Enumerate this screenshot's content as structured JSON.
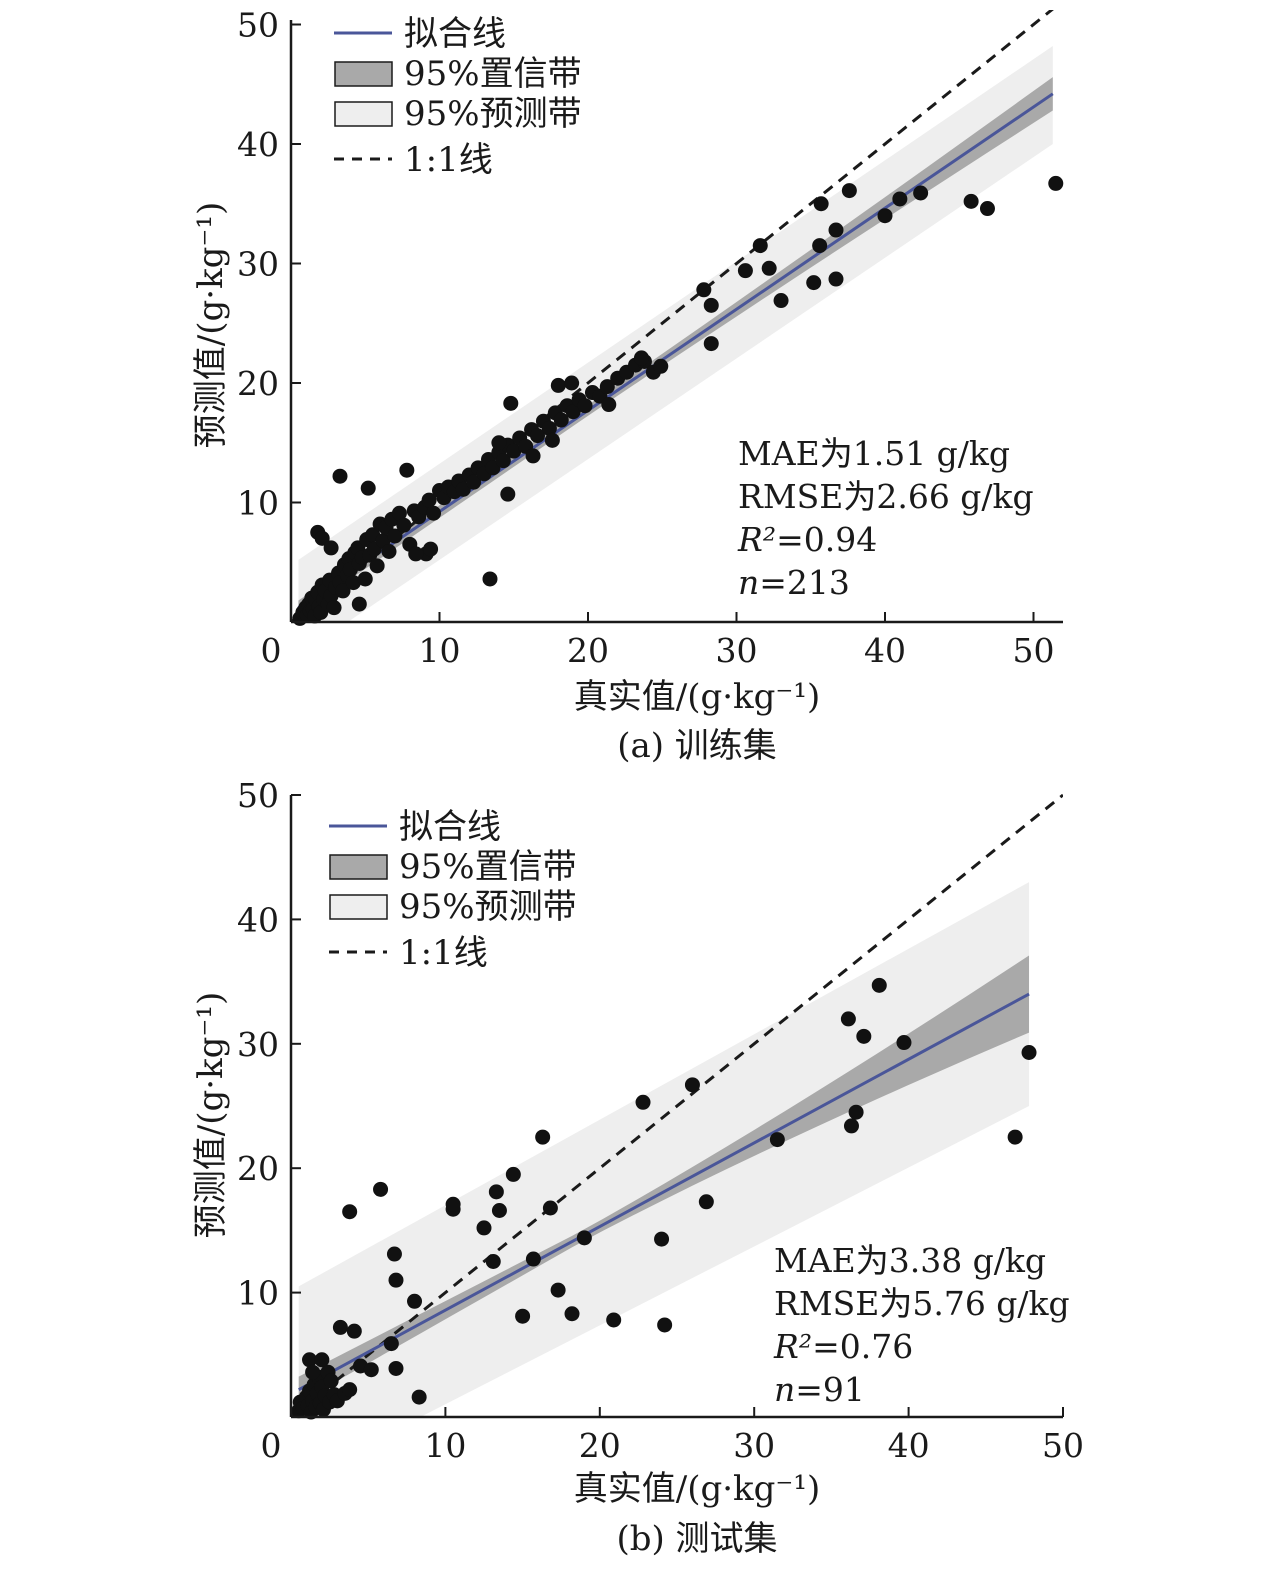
{
  "colors": {
    "fit_line": "#4a5699",
    "confidence_band": "#a9a9a9",
    "prediction_band": "#eeeeee",
    "points": "#111111",
    "axis": "#1a1a1a"
  },
  "legend": {
    "fit": "拟合线",
    "confidence": "95%置信带",
    "prediction": "95%预测带",
    "identity": "1:1线"
  },
  "chart_data": [
    {
      "type": "scatter",
      "caption": "(a) 训练集",
      "xlabel": "真实值/(g·kg⁻¹)",
      "ylabel": "预测值/(g·kg⁻¹)",
      "xlim": [
        0,
        52
      ],
      "ylim": [
        0,
        50
      ],
      "xticks": [
        0,
        10,
        20,
        30,
        40,
        50
      ],
      "yticks": [
        10,
        20,
        30,
        40,
        50
      ],
      "stats": [
        "MAE为1.51 g/kg",
        "RMSE为2.66 g/kg",
        "R²=0.94",
        "n=213"
      ],
      "fit": {
        "x": [
          0.5,
          51.3
        ],
        "y": [
          1.2,
          44.2
        ]
      },
      "confidence_band": {
        "x": [
          0.5,
          51.3
        ],
        "lower": [
          0.6,
          42.8
        ],
        "upper": [
          1.8,
          45.6
        ]
      },
      "prediction_band": {
        "x": [
          0.5,
          51.3
        ],
        "lower": [
          -2.8,
          40.0
        ],
        "upper": [
          5.2,
          48.2
        ]
      },
      "points": [
        [
          0.6,
          0.3
        ],
        [
          0.8,
          0.8
        ],
        [
          1.0,
          1.2
        ],
        [
          1.1,
          0.6
        ],
        [
          1.2,
          1.5
        ],
        [
          1.3,
          0.9
        ],
        [
          1.4,
          2.0
        ],
        [
          1.5,
          1.1
        ],
        [
          1.6,
          0.5
        ],
        [
          1.7,
          1.8
        ],
        [
          1.8,
          2.5
        ],
        [
          1.9,
          1.3
        ],
        [
          2.0,
          0.8
        ],
        [
          2.1,
          3.1
        ],
        [
          2.2,
          1.9
        ],
        [
          2.3,
          2.6
        ],
        [
          2.5,
          1.5
        ],
        [
          2.6,
          3.5
        ],
        [
          2.7,
          2.2
        ],
        [
          2.9,
          1.2
        ],
        [
          3.0,
          2.9
        ],
        [
          3.2,
          4.1
        ],
        [
          3.3,
          3.3
        ],
        [
          3.5,
          2.6
        ],
        [
          3.6,
          4.8
        ],
        [
          3.8,
          3.9
        ],
        [
          3.9,
          5.3
        ],
        [
          4.0,
          4.4
        ],
        [
          4.2,
          3.3
        ],
        [
          4.3,
          5.8
        ],
        [
          4.5,
          6.2
        ],
        [
          4.6,
          4.9
        ],
        [
          4.8,
          5.4
        ],
        [
          5.0,
          3.6
        ],
        [
          5.1,
          6.9
        ],
        [
          5.3,
          5.6
        ],
        [
          5.5,
          7.3
        ],
        [
          5.6,
          6.1
        ],
        [
          5.8,
          4.7
        ],
        [
          6.0,
          8.2
        ],
        [
          6.2,
          6.8
        ],
        [
          6.4,
          7.9
        ],
        [
          6.6,
          5.9
        ],
        [
          6.8,
          8.6
        ],
        [
          7.0,
          7.2
        ],
        [
          7.3,
          9.1
        ],
        [
          7.6,
          8.1
        ],
        [
          8.0,
          6.5
        ],
        [
          8.3,
          9.3
        ],
        [
          8.6,
          8.8
        ],
        [
          9.0,
          9.6
        ],
        [
          9.3,
          10.2
        ],
        [
          9.6,
          9.1
        ],
        [
          10.0,
          11.0
        ],
        [
          10.3,
          10.4
        ],
        [
          10.6,
          11.3
        ],
        [
          11.0,
          10.9
        ],
        [
          11.3,
          11.8
        ],
        [
          11.6,
          11.1
        ],
        [
          12.0,
          12.3
        ],
        [
          12.3,
          11.7
        ],
        [
          12.6,
          12.9
        ],
        [
          13.0,
          12.4
        ],
        [
          13.3,
          13.6
        ],
        [
          13.6,
          12.9
        ],
        [
          14.0,
          14.2
        ],
        [
          14.3,
          13.5
        ],
        [
          14.6,
          14.8
        ],
        [
          15.0,
          14.3
        ],
        [
          15.4,
          15.4
        ],
        [
          15.8,
          14.7
        ],
        [
          16.2,
          16.1
        ],
        [
          16.6,
          15.6
        ],
        [
          17.0,
          16.8
        ],
        [
          17.4,
          16.2
        ],
        [
          17.8,
          17.5
        ],
        [
          18.2,
          16.9
        ],
        [
          18.6,
          18.1
        ],
        [
          19.0,
          17.6
        ],
        [
          19.4,
          18.6
        ],
        [
          19.8,
          18.1
        ],
        [
          20.3,
          19.2
        ],
        [
          20.8,
          18.9
        ],
        [
          21.3,
          19.7
        ],
        [
          22.0,
          20.4
        ],
        [
          22.6,
          20.9
        ],
        [
          23.2,
          21.5
        ],
        [
          23.8,
          21.8
        ],
        [
          24.4,
          20.9
        ],
        [
          24.9,
          21.4
        ],
        [
          1.8,
          7.5
        ],
        [
          2.1,
          7.0
        ],
        [
          3.3,
          12.2
        ],
        [
          7.8,
          12.7
        ],
        [
          5.2,
          11.2
        ],
        [
          2.7,
          6.2
        ],
        [
          4.6,
          1.5
        ],
        [
          13.4,
          3.6
        ],
        [
          14.8,
          18.3
        ],
        [
          9.1,
          5.7
        ],
        [
          9.4,
          6.1
        ],
        [
          8.4,
          5.7
        ],
        [
          14.6,
          10.7
        ],
        [
          14.0,
          15.0
        ],
        [
          16.3,
          13.9
        ],
        [
          18.0,
          19.8
        ],
        [
          17.6,
          15.2
        ],
        [
          18.9,
          20.0
        ],
        [
          21.4,
          18.2
        ],
        [
          23.6,
          22.1
        ],
        [
          27.8,
          27.8
        ],
        [
          28.3,
          26.5
        ],
        [
          28.3,
          23.3
        ],
        [
          30.6,
          29.4
        ],
        [
          31.6,
          31.5
        ],
        [
          32.2,
          29.6
        ],
        [
          33.0,
          26.9
        ],
        [
          35.2,
          28.4
        ],
        [
          35.6,
          31.5
        ],
        [
          35.7,
          35.0
        ],
        [
          36.7,
          28.7
        ],
        [
          36.7,
          32.8
        ],
        [
          37.6,
          36.1
        ],
        [
          40.0,
          34.0
        ],
        [
          41.0,
          35.4
        ],
        [
          42.4,
          35.9
        ],
        [
          45.8,
          35.2
        ],
        [
          46.9,
          34.6
        ],
        [
          51.5,
          36.7
        ]
      ]
    },
    {
      "type": "scatter",
      "caption": "(b) 测试集",
      "xlabel": "真实值/(g·kg⁻¹)",
      "ylabel": "预测值/(g·kg⁻¹)",
      "xlim": [
        0,
        50
      ],
      "ylim": [
        0,
        50
      ],
      "xticks": [
        0,
        10,
        20,
        30,
        40,
        50
      ],
      "yticks": [
        10,
        20,
        30,
        40,
        50
      ],
      "stats": [
        "MAE为3.38 g/kg",
        "RMSE为5.76 g/kg",
        "R²=0.76",
        "n=91"
      ],
      "fit": {
        "x": [
          0.5,
          47.8
        ],
        "y": [
          2.2,
          34.0
        ]
      },
      "confidence_band": {
        "x": [
          0.5,
          47.8
        ],
        "lower": [
          1.2,
          30.8
        ],
        "upper": [
          3.3,
          37.0
        ]
      },
      "prediction_band": {
        "x": [
          0.5,
          47.8
        ],
        "lower": [
          -5.0,
          25.0
        ],
        "upper": [
          10.5,
          43.0
        ]
      },
      "points": [
        [
          0.5,
          0.5
        ],
        [
          0.6,
          1.2
        ],
        [
          0.8,
          0.7
        ],
        [
          1.0,
          1.6
        ],
        [
          1.1,
          0.9
        ],
        [
          1.2,
          2.1
        ],
        [
          1.3,
          0.4
        ],
        [
          1.4,
          1.3
        ],
        [
          1.5,
          2.6
        ],
        [
          1.6,
          0.8
        ],
        [
          1.7,
          1.9
        ],
        [
          1.8,
          3.2
        ],
        [
          1.9,
          1.1
        ],
        [
          2.0,
          2.4
        ],
        [
          2.1,
          0.6
        ],
        [
          2.2,
          1.7
        ],
        [
          2.4,
          3.6
        ],
        [
          2.5,
          1.2
        ],
        [
          2.6,
          2.9
        ],
        [
          2.8,
          1.8
        ],
        [
          1.2,
          4.6
        ],
        [
          1.4,
          3.6
        ],
        [
          2.0,
          4.6
        ],
        [
          3.0,
          1.3
        ],
        [
          3.2,
          7.2
        ],
        [
          3.5,
          1.9
        ],
        [
          3.8,
          2.2
        ],
        [
          3.8,
          16.5
        ],
        [
          4.1,
          6.9
        ],
        [
          4.5,
          4.1
        ],
        [
          5.2,
          3.8
        ],
        [
          5.8,
          18.3
        ],
        [
          6.5,
          5.9
        ],
        [
          6.7,
          13.1
        ],
        [
          6.8,
          3.9
        ],
        [
          6.8,
          11.0
        ],
        [
          8.0,
          9.3
        ],
        [
          8.3,
          1.6
        ],
        [
          10.5,
          16.7
        ],
        [
          10.5,
          17.1
        ],
        [
          12.5,
          15.2
        ],
        [
          13.1,
          12.5
        ],
        [
          13.3,
          18.1
        ],
        [
          13.5,
          16.6
        ],
        [
          14.4,
          19.5
        ],
        [
          15.0,
          8.1
        ],
        [
          15.7,
          12.7
        ],
        [
          16.3,
          22.5
        ],
        [
          16.8,
          16.8
        ],
        [
          17.3,
          10.2
        ],
        [
          18.2,
          8.3
        ],
        [
          19.0,
          14.4
        ],
        [
          20.9,
          7.8
        ],
        [
          22.8,
          25.3
        ],
        [
          24.0,
          14.3
        ],
        [
          24.2,
          7.4
        ],
        [
          26.0,
          26.7
        ],
        [
          26.9,
          17.3
        ],
        [
          31.5,
          22.3
        ],
        [
          36.1,
          32.0
        ],
        [
          36.3,
          23.4
        ],
        [
          36.6,
          24.5
        ],
        [
          37.1,
          30.6
        ],
        [
          38.1,
          34.7
        ],
        [
          39.7,
          30.1
        ],
        [
          46.9,
          22.5
        ],
        [
          47.8,
          29.3
        ]
      ]
    }
  ]
}
